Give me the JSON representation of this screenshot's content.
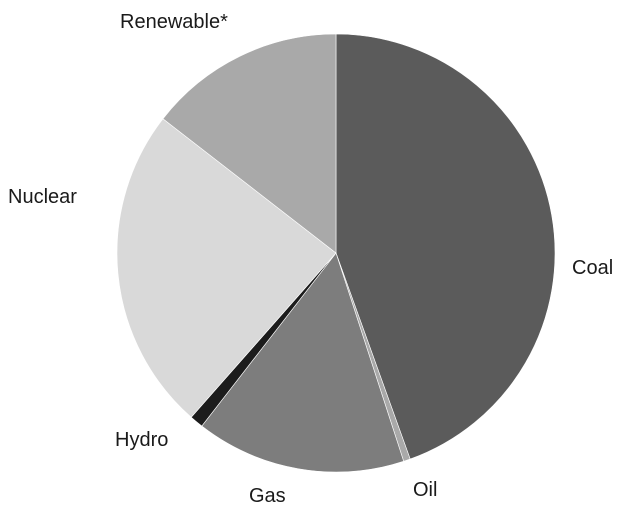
{
  "chart_data": {
    "type": "pie",
    "title": "",
    "slices": [
      {
        "label": "Coal",
        "value": 44.5,
        "color": "#5b5b5b"
      },
      {
        "label": "Oil",
        "value": 0.5,
        "color": "#a9a9a9"
      },
      {
        "label": "Gas",
        "value": 15.5,
        "color": "#7d7d7d"
      },
      {
        "label": "Hydro",
        "value": 1.0,
        "color": "#1c1c1c"
      },
      {
        "label": "Nuclear",
        "value": 24.0,
        "color": "#d9d9d9"
      },
      {
        "label": "Renewable*",
        "value": 14.5,
        "color": "#a9a9a9"
      }
    ],
    "start": "12 o'clock",
    "direction": "clockwise",
    "legend": "none"
  }
}
